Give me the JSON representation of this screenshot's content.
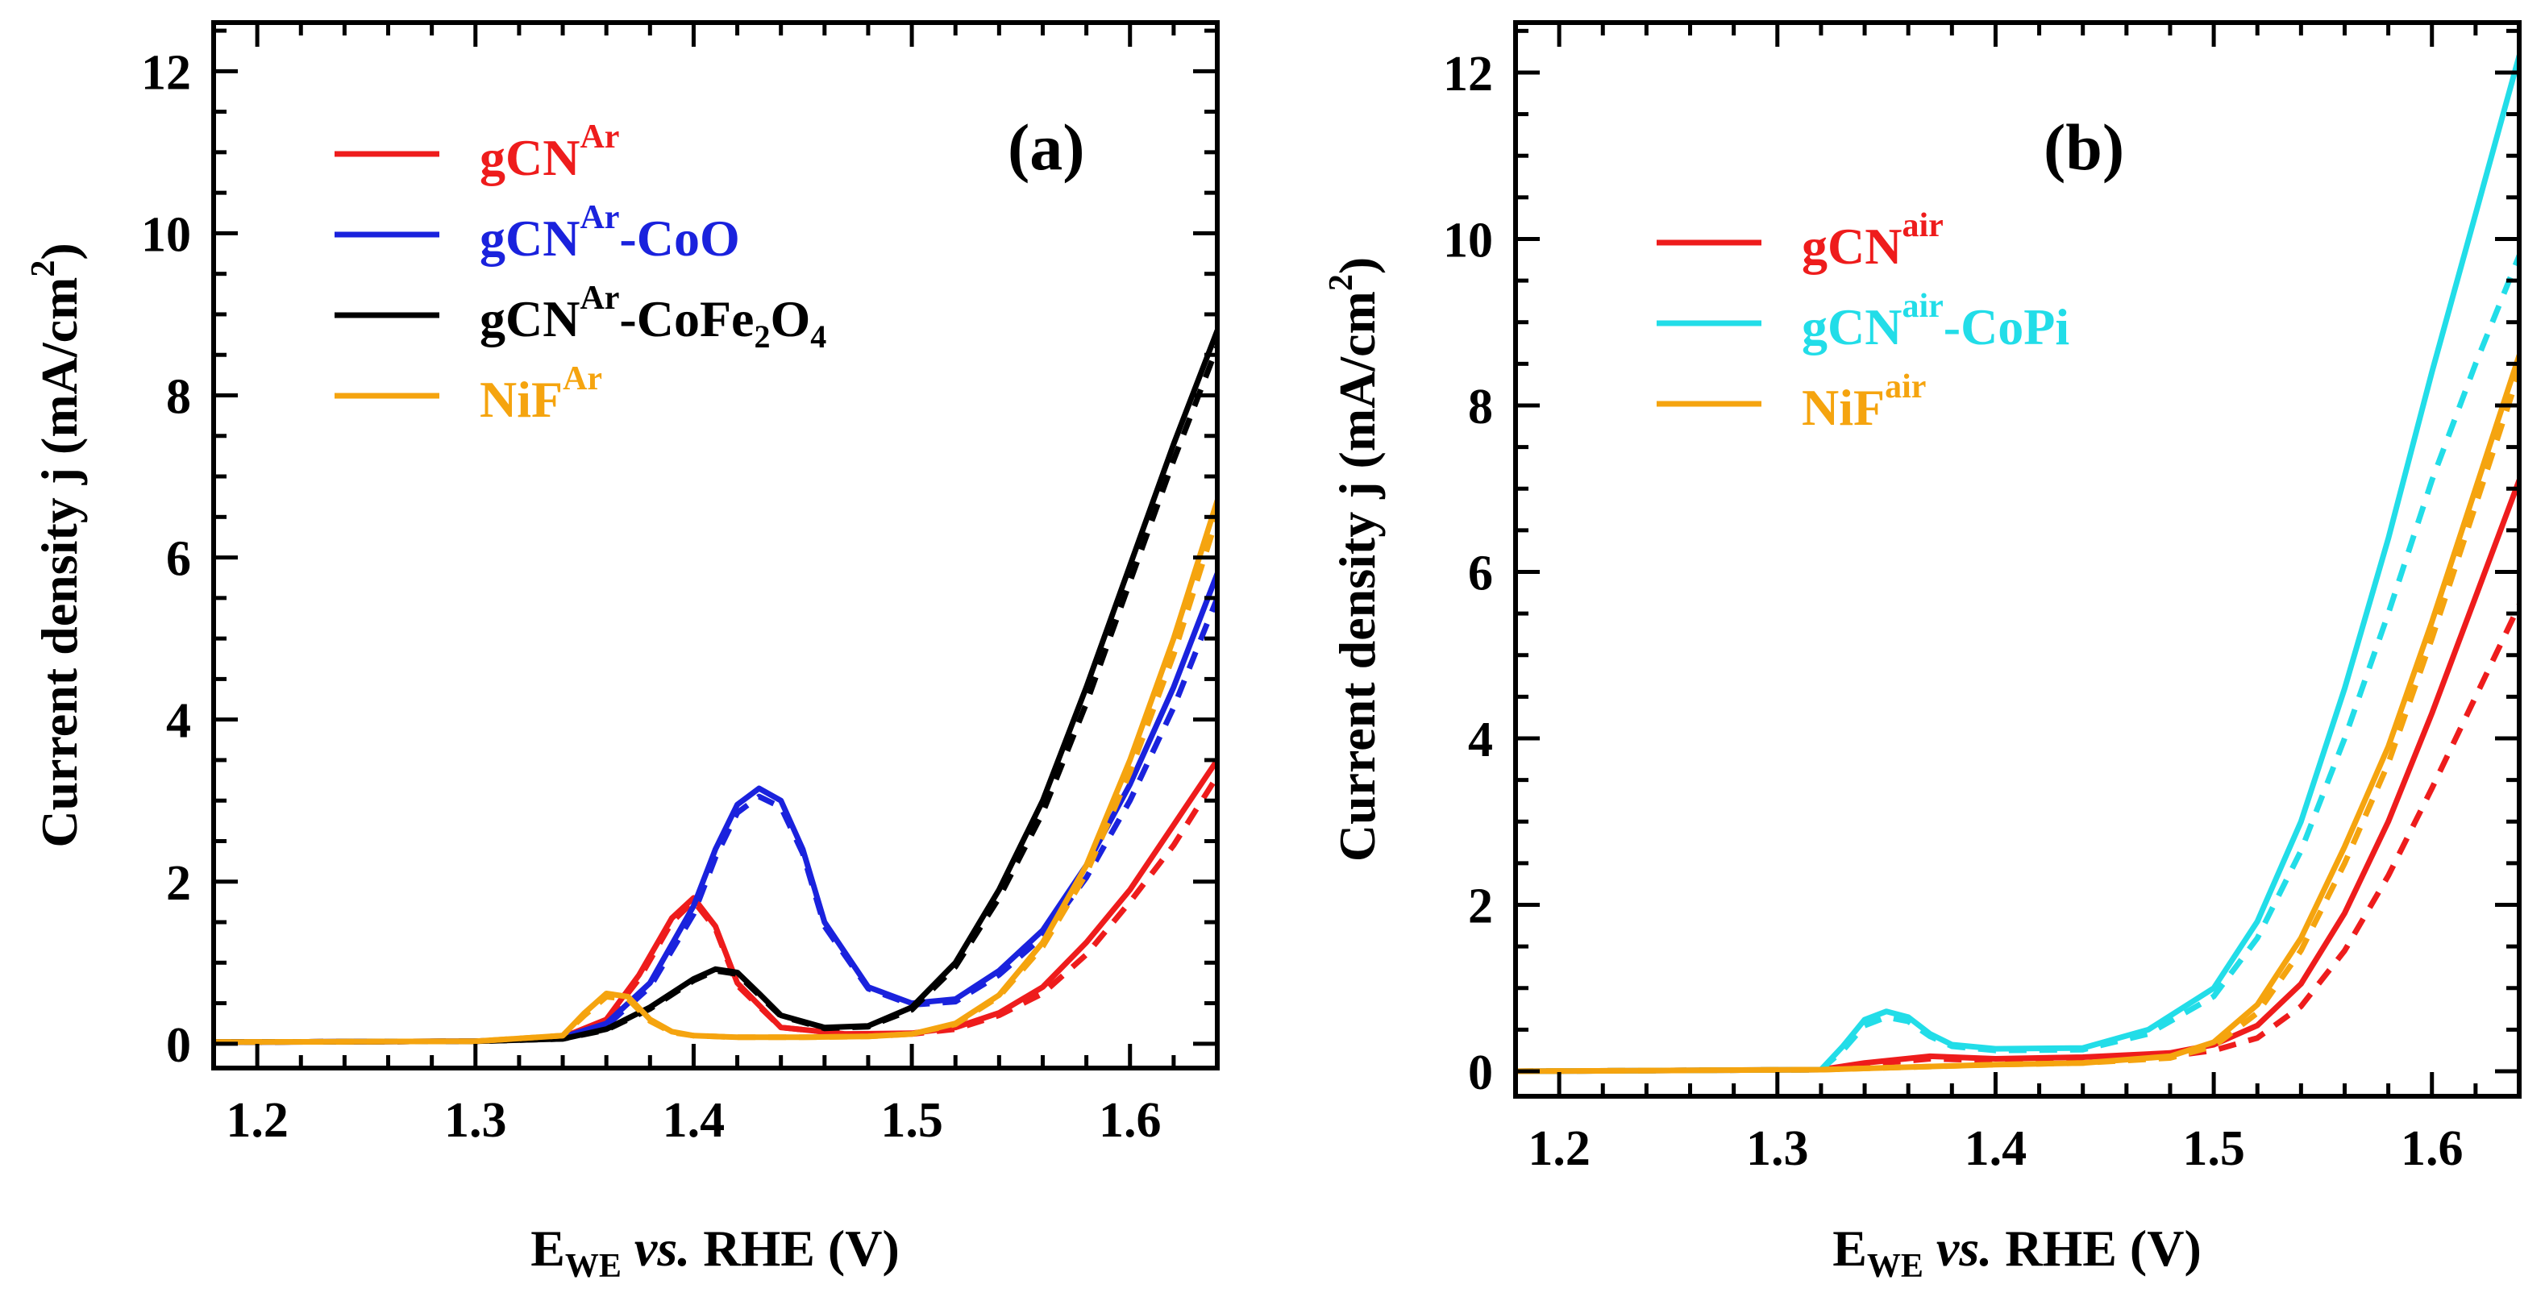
{
  "chart_data": [
    {
      "type": "line",
      "panel_label": "(a)",
      "xlabel": {
        "main": "E",
        "sub": "WE",
        "italic": " vs.",
        "rest": " RHE (V)"
      },
      "ylabel": {
        "main": "Current density j (mA/cm",
        "sup": "2",
        "end": ")"
      },
      "xlim": [
        1.18,
        1.64
      ],
      "ylim": [
        -0.3,
        12.6
      ],
      "xticks": [
        1.2,
        1.3,
        1.4,
        1.5,
        1.6
      ],
      "xtick_labels": [
        "1.2",
        "1.3",
        "1.4",
        "1.5",
        "1.6"
      ],
      "yticks": [
        0,
        2,
        4,
        6,
        8,
        10,
        12
      ],
      "ytick_labels": [
        "0",
        "2",
        "4",
        "6",
        "8",
        "10",
        "12"
      ],
      "legend": [
        {
          "base": "gCN",
          "sup": "Ar",
          "suffix": "",
          "color": "#ee1c1c"
        },
        {
          "base": "gCN",
          "sup": "Ar",
          "suffix": "-CoO",
          "color": "#1a22dd"
        },
        {
          "base": "gCN",
          "sup": "Ar",
          "suffix": "-CoFe",
          "sub": "2",
          "suffix2": "O",
          "sub2": "4",
          "color": "#000000"
        },
        {
          "base": "NiF",
          "sup": "Ar",
          "suffix": "",
          "color": "#f5a40f"
        }
      ],
      "series": [
        {
          "name": "gCN^Ar",
          "color": "#ee1c1c",
          "dashed": false,
          "x": [
            1.18,
            1.3,
            1.34,
            1.36,
            1.375,
            1.39,
            1.4,
            1.41,
            1.42,
            1.44,
            1.47,
            1.5,
            1.52,
            1.54,
            1.56,
            1.58,
            1.6,
            1.62,
            1.64
          ],
          "y": [
            0.02,
            0.03,
            0.08,
            0.3,
            0.85,
            1.55,
            1.8,
            1.45,
            0.75,
            0.2,
            0.12,
            0.13,
            0.2,
            0.38,
            0.7,
            1.25,
            1.9,
            2.7,
            3.5
          ]
        },
        {
          "name": "gCN^Ar (dashed)",
          "color": "#ee1c1c",
          "dashed": true,
          "x": [
            1.18,
            1.3,
            1.34,
            1.36,
            1.375,
            1.39,
            1.4,
            1.41,
            1.42,
            1.44,
            1.47,
            1.5,
            1.52,
            1.54,
            1.56,
            1.58,
            1.6,
            1.62,
            1.64
          ],
          "y": [
            0.02,
            0.03,
            0.08,
            0.28,
            0.8,
            1.5,
            1.76,
            1.42,
            0.72,
            0.2,
            0.12,
            0.12,
            0.18,
            0.35,
            0.62,
            1.1,
            1.75,
            2.45,
            3.3
          ]
        },
        {
          "name": "gCN^Ar-CoO",
          "color": "#1a22dd",
          "dashed": false,
          "x": [
            1.18,
            1.3,
            1.34,
            1.36,
            1.38,
            1.4,
            1.41,
            1.42,
            1.43,
            1.44,
            1.45,
            1.46,
            1.48,
            1.5,
            1.52,
            1.54,
            1.56,
            1.58,
            1.6,
            1.62,
            1.64
          ],
          "y": [
            0.02,
            0.03,
            0.08,
            0.25,
            0.75,
            1.7,
            2.4,
            2.95,
            3.15,
            3.0,
            2.4,
            1.5,
            0.7,
            0.5,
            0.55,
            0.9,
            1.4,
            2.2,
            3.2,
            4.4,
            5.8
          ]
        },
        {
          "name": "gCN^Ar-CoO (dashed)",
          "color": "#1a22dd",
          "dashed": true,
          "x": [
            1.18,
            1.3,
            1.34,
            1.36,
            1.38,
            1.4,
            1.41,
            1.42,
            1.43,
            1.44,
            1.45,
            1.46,
            1.48,
            1.5,
            1.52,
            1.54,
            1.56,
            1.58,
            1.6,
            1.62,
            1.64
          ],
          "y": [
            0.02,
            0.03,
            0.08,
            0.22,
            0.7,
            1.6,
            2.3,
            2.85,
            3.05,
            2.92,
            2.35,
            1.45,
            0.68,
            0.48,
            0.52,
            0.85,
            1.32,
            2.05,
            3.0,
            4.15,
            5.5
          ]
        },
        {
          "name": "gCN^Ar-CoFe2O4",
          "color": "#000000",
          "dashed": false,
          "x": [
            1.18,
            1.3,
            1.34,
            1.36,
            1.38,
            1.4,
            1.41,
            1.42,
            1.43,
            1.44,
            1.46,
            1.48,
            1.5,
            1.52,
            1.54,
            1.56,
            1.58,
            1.6,
            1.62,
            1.64
          ],
          "y": [
            0.02,
            0.03,
            0.06,
            0.18,
            0.45,
            0.8,
            0.92,
            0.88,
            0.62,
            0.35,
            0.2,
            0.22,
            0.45,
            1.0,
            1.9,
            3.0,
            4.4,
            5.9,
            7.4,
            8.8
          ]
        },
        {
          "name": "gCN^Ar-CoFe2O4 (dashed)",
          "color": "#000000",
          "dashed": true,
          "x": [
            1.18,
            1.3,
            1.34,
            1.36,
            1.38,
            1.4,
            1.41,
            1.42,
            1.43,
            1.44,
            1.46,
            1.48,
            1.5,
            1.52,
            1.54,
            1.56,
            1.58,
            1.6,
            1.62,
            1.64
          ],
          "y": [
            0.02,
            0.03,
            0.06,
            0.17,
            0.43,
            0.78,
            0.9,
            0.86,
            0.6,
            0.34,
            0.19,
            0.21,
            0.42,
            0.95,
            1.8,
            2.85,
            4.2,
            5.7,
            7.2,
            8.6
          ]
        },
        {
          "name": "NiF^Ar",
          "color": "#f5a40f",
          "dashed": false,
          "x": [
            1.18,
            1.3,
            1.34,
            1.35,
            1.36,
            1.37,
            1.38,
            1.39,
            1.4,
            1.42,
            1.45,
            1.48,
            1.5,
            1.52,
            1.54,
            1.56,
            1.58,
            1.6,
            1.62,
            1.64
          ],
          "y": [
            0.02,
            0.03,
            0.1,
            0.38,
            0.62,
            0.58,
            0.3,
            0.15,
            0.1,
            0.08,
            0.08,
            0.09,
            0.12,
            0.25,
            0.6,
            1.25,
            2.2,
            3.5,
            5.0,
            6.7
          ]
        },
        {
          "name": "NiF^Ar (dashed)",
          "color": "#f5a40f",
          "dashed": true,
          "x": [
            1.18,
            1.3,
            1.34,
            1.35,
            1.36,
            1.37,
            1.38,
            1.39,
            1.4,
            1.42,
            1.45,
            1.48,
            1.5,
            1.52,
            1.54,
            1.56,
            1.58,
            1.6,
            1.62,
            1.64
          ],
          "y": [
            0.02,
            0.03,
            0.1,
            0.35,
            0.58,
            0.55,
            0.28,
            0.14,
            0.1,
            0.08,
            0.08,
            0.09,
            0.12,
            0.24,
            0.58,
            1.2,
            2.1,
            3.35,
            4.8,
            6.5
          ]
        }
      ]
    },
    {
      "type": "line",
      "panel_label": "(b)",
      "xlabel": {
        "main": "E",
        "sub": "WE",
        "italic": " vs.",
        "rest": " RHE (V)"
      },
      "ylabel": {
        "main": "Current density j (mA/cm",
        "sup": "2",
        "end": ")"
      },
      "xlim": [
        1.18,
        1.64
      ],
      "ylim": [
        -0.3,
        12.6
      ],
      "xticks": [
        1.2,
        1.3,
        1.4,
        1.5,
        1.6
      ],
      "xtick_labels": [
        "1.2",
        "1.3",
        "1.4",
        "1.5",
        "1.6"
      ],
      "yticks": [
        0,
        2,
        4,
        6,
        8,
        10,
        12
      ],
      "ytick_labels": [
        "0",
        "2",
        "4",
        "6",
        "8",
        "10",
        "12"
      ],
      "legend": [
        {
          "base": "gCN",
          "sup": "air",
          "suffix": "",
          "color": "#ee1c1c"
        },
        {
          "base": "gCN",
          "sup": "air",
          "suffix": "-CoPi",
          "color": "#22dde8"
        },
        {
          "base": "NiF",
          "sup": "air",
          "suffix": "",
          "color": "#f5a40f"
        }
      ],
      "series": [
        {
          "name": "gCN^air",
          "color": "#ee1c1c",
          "dashed": false,
          "x": [
            1.18,
            1.32,
            1.34,
            1.37,
            1.4,
            1.44,
            1.48,
            1.5,
            1.52,
            1.54,
            1.56,
            1.58,
            1.6,
            1.62,
            1.64
          ],
          "y": [
            0.0,
            0.02,
            0.1,
            0.18,
            0.15,
            0.17,
            0.22,
            0.32,
            0.55,
            1.05,
            1.9,
            3.0,
            4.3,
            5.7,
            7.1
          ]
        },
        {
          "name": "gCN^air (dashed)",
          "color": "#ee1c1c",
          "dashed": true,
          "x": [
            1.18,
            1.32,
            1.34,
            1.37,
            1.4,
            1.44,
            1.48,
            1.5,
            1.52,
            1.54,
            1.56,
            1.58,
            1.6,
            1.62,
            1.64
          ],
          "y": [
            0.0,
            0.02,
            0.08,
            0.15,
            0.13,
            0.14,
            0.18,
            0.25,
            0.4,
            0.78,
            1.45,
            2.35,
            3.4,
            4.5,
            5.6
          ]
        },
        {
          "name": "gCN^air-CoPi",
          "color": "#22dde8",
          "dashed": false,
          "x": [
            1.18,
            1.32,
            1.33,
            1.34,
            1.35,
            1.36,
            1.37,
            1.38,
            1.4,
            1.44,
            1.47,
            1.5,
            1.52,
            1.54,
            1.56,
            1.58,
            1.6,
            1.62,
            1.64
          ],
          "y": [
            0.0,
            0.02,
            0.3,
            0.62,
            0.72,
            0.65,
            0.45,
            0.32,
            0.27,
            0.28,
            0.5,
            1.0,
            1.8,
            3.0,
            4.6,
            6.4,
            8.4,
            10.3,
            12.2
          ]
        },
        {
          "name": "gCN^air-CoPi (dashed)",
          "color": "#22dde8",
          "dashed": true,
          "x": [
            1.18,
            1.32,
            1.33,
            1.34,
            1.35,
            1.36,
            1.37,
            1.38,
            1.4,
            1.44,
            1.47,
            1.5,
            1.52,
            1.54,
            1.56,
            1.58,
            1.6,
            1.62,
            1.64
          ],
          "y": [
            0.0,
            0.02,
            0.25,
            0.55,
            0.65,
            0.6,
            0.42,
            0.3,
            0.25,
            0.26,
            0.45,
            0.9,
            1.6,
            2.65,
            4.0,
            5.5,
            7.1,
            8.5,
            9.8
          ]
        },
        {
          "name": "NiF^air",
          "color": "#f5a40f",
          "dashed": false,
          "x": [
            1.18,
            1.32,
            1.36,
            1.4,
            1.44,
            1.48,
            1.5,
            1.52,
            1.54,
            1.56,
            1.58,
            1.6,
            1.62,
            1.64
          ],
          "y": [
            0.0,
            0.02,
            0.05,
            0.08,
            0.1,
            0.18,
            0.35,
            0.8,
            1.6,
            2.7,
            3.9,
            5.4,
            7.0,
            8.6
          ]
        },
        {
          "name": "NiF^air (dashed)",
          "color": "#f5a40f",
          "dashed": true,
          "x": [
            1.18,
            1.32,
            1.36,
            1.4,
            1.44,
            1.48,
            1.5,
            1.52,
            1.54,
            1.56,
            1.58,
            1.6,
            1.62,
            1.64
          ],
          "y": [
            0.0,
            0.02,
            0.05,
            0.08,
            0.1,
            0.16,
            0.3,
            0.7,
            1.45,
            2.5,
            3.7,
            5.2,
            6.8,
            8.4
          ]
        }
      ]
    }
  ]
}
